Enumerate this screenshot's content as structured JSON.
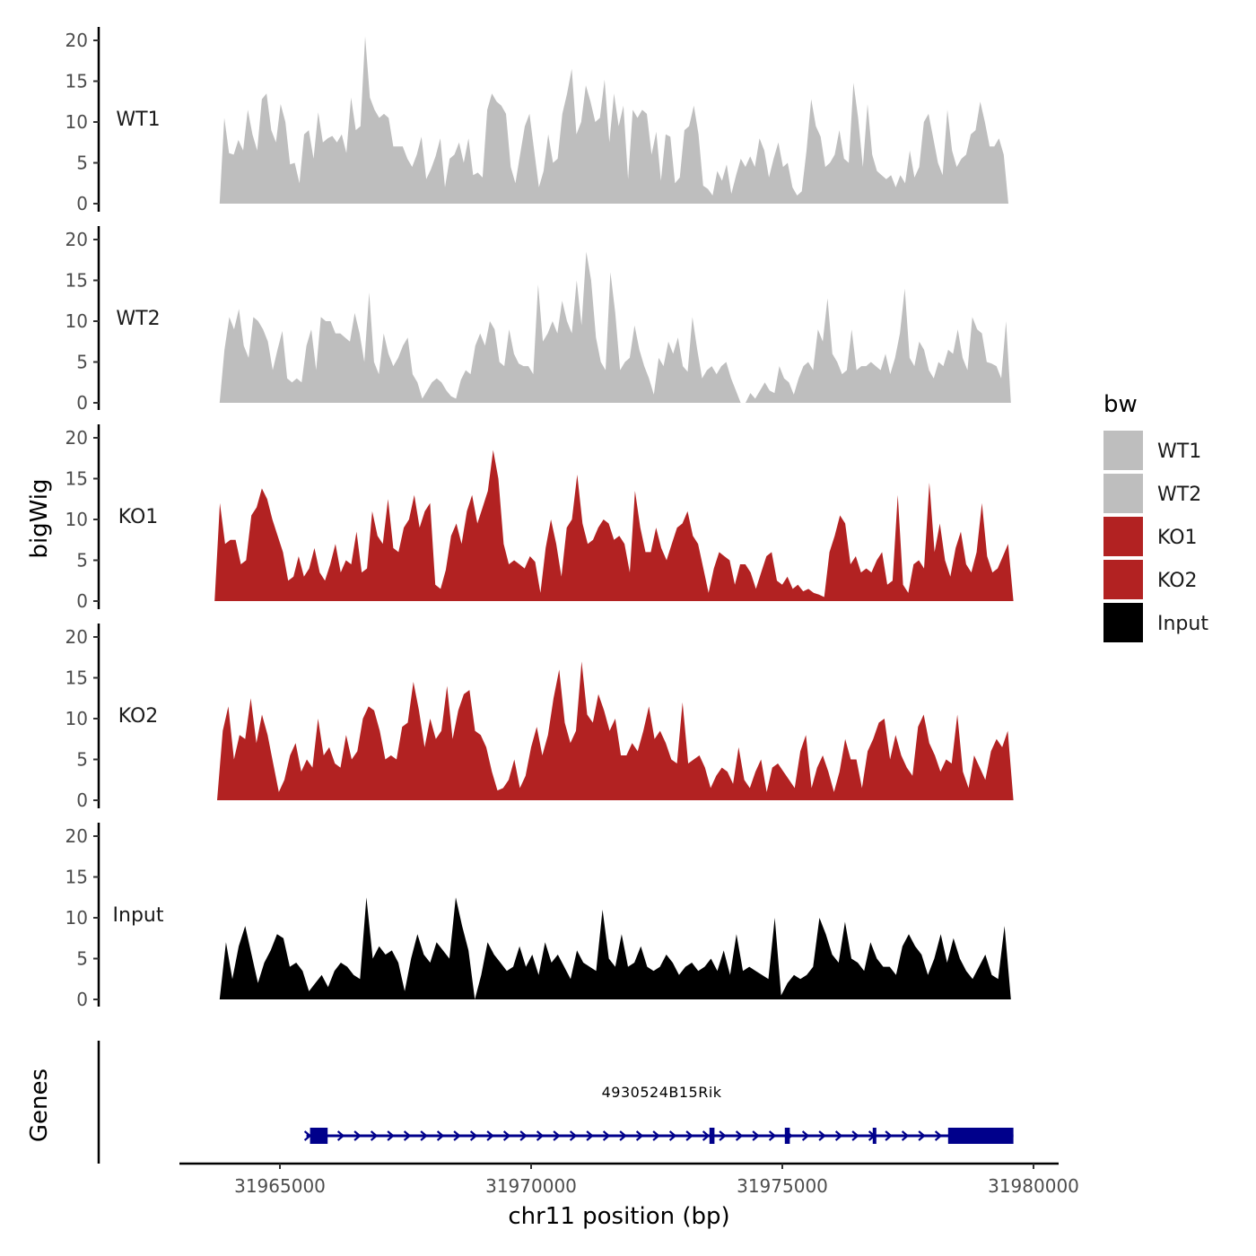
{
  "chart_data": {
    "type": "area",
    "chromosome": "chr11",
    "xlabel": "chr11 position (bp)",
    "ylabel": "bigWig",
    "xlim": [
      31963000,
      31980500
    ],
    "x_ticks": [
      31965000,
      31970000,
      31975000,
      31980000
    ],
    "x_tick_labels": [
      "31965000",
      "31970000",
      "31975000",
      "31980000"
    ],
    "ylim": [
      0,
      21
    ],
    "y_ticks": [
      0,
      5,
      10,
      15,
      20
    ],
    "y_tick_labels": [
      "0",
      "5",
      "10",
      "15",
      "20"
    ],
    "data_range": [
      31963800,
      31979600
    ],
    "legend": {
      "title": "bw",
      "position": "right",
      "entries": [
        {
          "label": "WT1",
          "color": "#bebebe"
        },
        {
          "label": "WT2",
          "color": "#bebebe"
        },
        {
          "label": "KO1",
          "color": "#b22222"
        },
        {
          "label": "KO2",
          "color": "#b22222"
        },
        {
          "label": "Input",
          "color": "#000000"
        }
      ]
    },
    "series": [
      {
        "name": "WT1",
        "color": "#bebebe",
        "x_start": 31963800,
        "x_end": 31979500,
        "values": [
          0,
          10.5,
          6.2,
          6.0,
          7.8,
          6.5,
          11.5,
          8.5,
          6.5,
          12.8,
          13.5,
          9.0,
          7.5,
          12.2,
          10.0,
          4.8,
          5.0,
          2.5,
          8.5,
          9.0,
          5.5,
          11.2,
          7.5,
          8.0,
          8.3,
          7.5,
          8.5,
          6.2,
          13.0,
          9.0,
          9.5,
          20.5,
          13.0,
          11.5,
          10.5,
          11.0,
          10.5,
          7.0,
          7.0,
          7.0,
          5.5,
          4.5,
          6.0,
          8.2,
          3.0,
          4.2,
          5.8,
          8.0,
          2.0,
          5.5,
          6.0,
          7.5,
          5.0,
          8.0,
          3.5,
          3.8,
          3.2,
          11.5,
          13.5,
          12.5,
          12.0,
          11.0,
          4.5,
          2.5,
          6.0,
          9.5,
          11.0,
          6.5,
          2.0,
          4.0,
          8.5,
          5.0,
          5.5,
          11.0,
          13.5,
          16.5,
          8.5,
          10.0,
          14.5,
          12.5,
          10.0,
          10.5,
          15.2,
          7.5,
          13.5,
          9.5,
          12.0,
          3.0,
          11.5,
          10.5,
          11.5,
          11.0,
          6.0,
          8.8,
          2.8,
          8.5,
          8.2,
          2.5,
          3.2,
          9.0,
          9.5,
          12.0,
          8.5,
          2.2,
          1.8,
          1.0,
          4.0,
          2.8,
          4.8,
          1.2,
          3.5,
          5.5,
          4.5,
          5.8,
          4.5,
          8.0,
          6.5,
          3.2,
          5.5,
          7.5,
          4.5,
          5.0,
          2.0,
          1.0,
          1.5,
          6.5,
          12.8,
          9.5,
          8.2,
          4.5,
          5.0,
          6.0,
          9.0,
          5.5,
          5.0,
          14.8,
          10.5,
          4.5,
          12.2,
          6.0,
          4.0,
          3.5,
          3.0,
          3.5,
          2.0,
          3.5,
          2.5,
          6.5,
          3.2,
          4.5,
          10.0,
          11.0,
          8.0,
          5.0,
          3.5,
          11.5,
          6.5,
          4.5,
          5.5,
          6.0,
          8.5,
          9.0,
          12.5,
          10.0,
          7.0,
          7.0,
          8.0,
          6.0,
          0
        ]
      },
      {
        "name": "WT2",
        "color": "#bebebe",
        "x_start": 31963800,
        "x_end": 31979550,
        "values": [
          0,
          6.5,
          10.5,
          9.0,
          11.5,
          7.0,
          5.5,
          10.5,
          10.0,
          9.0,
          7.5,
          4.0,
          6.5,
          8.8,
          3.0,
          2.5,
          3.0,
          2.5,
          7.0,
          9.0,
          4.0,
          10.5,
          10.0,
          10.0,
          8.5,
          8.5,
          8.0,
          7.5,
          11.0,
          8.5,
          5.0,
          13.5,
          5.0,
          3.5,
          8.5,
          6.0,
          4.5,
          5.5,
          7.0,
          8.0,
          3.5,
          2.5,
          0.5,
          1.5,
          2.5,
          3.0,
          2.5,
          1.5,
          0.8,
          0.5,
          2.8,
          4.0,
          3.5,
          7.0,
          8.5,
          7.0,
          10.0,
          9.0,
          5.0,
          4.5,
          9.0,
          6.0,
          4.8,
          4.5,
          4.5,
          3.5,
          14.5,
          7.5,
          8.5,
          10.0,
          8.5,
          12.5,
          10.0,
          8.5,
          15.0,
          9.5,
          18.5,
          15.0,
          8.0,
          5.0,
          4.0,
          16.0,
          11.0,
          4.0,
          5.0,
          5.5,
          9.5,
          6.5,
          4.5,
          3.0,
          1.0,
          5.5,
          4.5,
          7.5,
          6.0,
          8.0,
          4.5,
          3.8,
          10.5,
          6.5,
          3.0,
          4.0,
          4.5,
          3.5,
          4.5,
          5.0,
          3.0,
          1.5,
          0.0,
          0.0,
          1.2,
          0.5,
          1.5,
          2.5,
          1.5,
          1.2,
          4.5,
          3.0,
          2.5,
          1.0,
          3.0,
          4.5,
          5.0,
          4.0,
          9.0,
          7.5,
          12.8,
          6.0,
          5.0,
          3.5,
          4.0,
          9.0,
          4.0,
          4.5,
          4.5,
          5.0,
          4.5,
          4.0,
          6.0,
          3.5,
          5.5,
          8.5,
          14.0,
          5.5,
          4.5,
          7.5,
          6.5,
          4.0,
          3.0,
          5.0,
          4.5,
          6.5,
          6.0,
          9.0,
          5.5,
          4.0,
          10.5,
          9.0,
          8.5,
          5.0,
          4.8,
          4.5,
          3.0,
          10.0,
          0
        ]
      },
      {
        "name": "KO1",
        "color": "#b22222",
        "x_start": 31963700,
        "x_end": 31979600,
        "values": [
          0,
          12.0,
          7.0,
          7.5,
          7.5,
          4.5,
          5.0,
          10.5,
          11.5,
          13.8,
          12.5,
          10.0,
          8.0,
          6.0,
          2.5,
          3.0,
          5.5,
          3.0,
          4.0,
          6.5,
          3.5,
          2.5,
          4.5,
          7.0,
          3.5,
          5.0,
          4.5,
          8.5,
          3.5,
          4.0,
          11.0,
          8.0,
          7.0,
          12.5,
          6.5,
          6.0,
          9.0,
          10.0,
          13.0,
          9.0,
          11.0,
          12.0,
          2.0,
          1.5,
          3.8,
          8.0,
          9.5,
          7.0,
          11.0,
          13.0,
          9.5,
          11.5,
          13.5,
          18.5,
          15.0,
          7.0,
          4.5,
          5.0,
          4.5,
          4.0,
          5.5,
          4.8,
          1.0,
          6.5,
          10.0,
          7.0,
          3.0,
          9.0,
          10.0,
          15.5,
          9.5,
          7.0,
          7.5,
          9.0,
          10.0,
          9.5,
          7.5,
          8.0,
          7.0,
          3.5,
          13.5,
          9.0,
          6.0,
          6.0,
          9.0,
          6.5,
          5.0,
          7.0,
          9.0,
          9.5,
          11.0,
          8.0,
          7.0,
          4.0,
          1.0,
          4.0,
          6.0,
          5.5,
          5.0,
          2.0,
          4.5,
          4.5,
          3.5,
          1.5,
          3.5,
          5.5,
          6.0,
          2.5,
          2.0,
          3.0,
          1.5,
          2.0,
          1.2,
          1.5,
          1.0,
          0.8,
          0.5,
          6.0,
          8.0,
          10.5,
          9.5,
          4.5,
          5.5,
          3.5,
          4.0,
          3.5,
          5.0,
          6.0,
          2.0,
          2.5,
          13.0,
          2.0,
          1.0,
          4.5,
          5.0,
          4.0,
          14.5,
          6.0,
          9.5,
          5.0,
          3.0,
          6.5,
          8.5,
          4.5,
          3.5,
          6.0,
          12.0,
          5.5,
          3.5,
          4.0,
          5.5,
          7.0,
          0
        ]
      },
      {
        "name": "KO2",
        "color": "#b22222",
        "x_start": 31963750,
        "x_end": 31979600,
        "values": [
          0,
          8.5,
          11.5,
          5.0,
          8.0,
          7.5,
          12.5,
          7.0,
          10.5,
          8.0,
          4.5,
          1.0,
          2.5,
          5.5,
          7.0,
          3.5,
          5.0,
          4.0,
          10.0,
          5.5,
          6.5,
          4.5,
          4.0,
          8.0,
          5.0,
          6.0,
          10.0,
          11.5,
          11.0,
          8.5,
          5.0,
          5.5,
          5.0,
          9.0,
          9.5,
          14.5,
          11.0,
          6.5,
          10.0,
          7.5,
          8.5,
          14.0,
          7.5,
          11.0,
          13.0,
          13.5,
          8.5,
          8.0,
          6.5,
          3.5,
          1.2,
          1.5,
          2.5,
          5.0,
          1.5,
          3.0,
          6.5,
          9.0,
          5.5,
          8.0,
          12.5,
          16.0,
          9.5,
          7.0,
          8.5,
          17.0,
          10.5,
          9.5,
          13.0,
          11.0,
          8.5,
          10.0,
          5.5,
          5.5,
          7.0,
          6.0,
          8.5,
          11.5,
          7.5,
          8.5,
          7.0,
          5.0,
          4.5,
          12.0,
          4.5,
          5.0,
          5.5,
          4.0,
          1.5,
          3.0,
          4.0,
          3.5,
          2.0,
          6.5,
          2.5,
          1.5,
          3.5,
          5.0,
          1.0,
          4.0,
          4.5,
          3.5,
          2.5,
          1.5,
          6.0,
          8.0,
          1.5,
          4.0,
          5.5,
          3.5,
          1.0,
          3.5,
          7.5,
          5.0,
          5.0,
          1.5,
          6.0,
          7.5,
          9.5,
          10.0,
          5.0,
          8.0,
          5.5,
          4.0,
          3.0,
          9.0,
          10.5,
          7.0,
          5.5,
          3.5,
          5.0,
          4.5,
          10.5,
          3.5,
          1.5,
          5.5,
          4.0,
          2.5,
          6.0,
          7.5,
          6.5,
          8.5,
          0
        ]
      },
      {
        "name": "Input",
        "color": "#000000",
        "x_start": 31963800,
        "x_end": 31979550,
        "values": [
          0,
          7.0,
          2.5,
          6.5,
          9.0,
          5.5,
          2.0,
          4.5,
          6.0,
          8.0,
          7.5,
          4.0,
          4.5,
          3.5,
          1.0,
          2.0,
          3.0,
          1.5,
          3.5,
          4.5,
          4.0,
          3.0,
          2.5,
          12.5,
          5.0,
          6.5,
          5.5,
          6.0,
          4.5,
          1.0,
          5.0,
          8.0,
          5.5,
          4.5,
          7.0,
          6.0,
          5.0,
          12.5,
          9.0,
          6.0,
          0.0,
          3.0,
          7.0,
          5.5,
          4.5,
          3.5,
          4.0,
          6.5,
          4.0,
          5.5,
          3.0,
          7.0,
          4.5,
          5.5,
          4.0,
          2.5,
          6.0,
          4.5,
          4.0,
          3.5,
          11.0,
          5.0,
          4.0,
          8.0,
          4.0,
          4.5,
          6.5,
          4.0,
          3.5,
          4.0,
          5.5,
          4.5,
          3.0,
          4.0,
          4.5,
          3.5,
          4.0,
          5.0,
          3.5,
          6.0,
          3.0,
          8.0,
          3.5,
          4.0,
          3.5,
          3.0,
          2.5,
          10.0,
          0.5,
          2.0,
          3.0,
          2.5,
          3.0,
          4.0,
          10.0,
          8.0,
          5.5,
          4.5,
          9.5,
          5.0,
          4.5,
          3.5,
          7.0,
          5.0,
          4.0,
          4.0,
          3.0,
          6.5,
          8.0,
          6.5,
          5.5,
          3.0,
          5.0,
          8.0,
          4.5,
          7.5,
          5.0,
          3.5,
          2.5,
          4.0,
          5.5,
          3.0,
          2.5,
          9.0,
          0
        ]
      }
    ],
    "genes": [
      {
        "name": "4930524B15Rik",
        "strand": "+",
        "start": 31965600,
        "end": 31979600,
        "exons": [
          [
            31965600,
            31965950
          ],
          [
            31973550,
            31973650
          ],
          [
            31975050,
            31975150
          ],
          [
            31976800,
            31976850
          ],
          [
            31978300,
            31979600
          ]
        ]
      }
    ]
  }
}
